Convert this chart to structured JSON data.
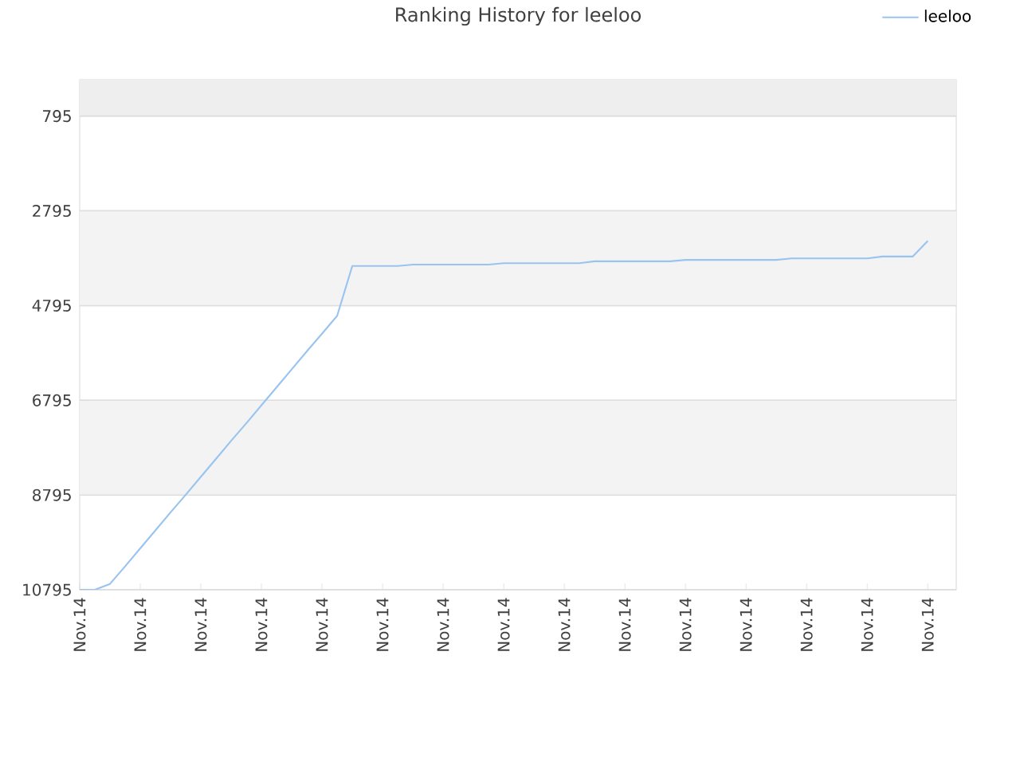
{
  "chart_data": {
    "type": "line",
    "title": "Ranking History for leeloo",
    "categories": [
      "Nov.14",
      null,
      null,
      null,
      "Nov.14",
      null,
      null,
      null,
      "Nov.14",
      null,
      null,
      null,
      "Nov.14",
      null,
      null,
      null,
      "Nov.14",
      null,
      null,
      null,
      "Nov.14",
      null,
      null,
      null,
      "Nov.14",
      null,
      null,
      null,
      "Nov.14",
      null,
      null,
      null,
      "Nov.14",
      null,
      null,
      null,
      "Nov.14",
      null,
      null,
      null,
      "Nov.14",
      null,
      null,
      null,
      "Nov.14",
      null,
      null,
      null,
      "Nov.14",
      null,
      null,
      null,
      "Nov.14",
      null,
      null,
      null,
      "Nov.14"
    ],
    "ylim": [
      10795,
      28
    ],
    "yticks": [
      795,
      2795,
      4795,
      6795,
      8795,
      10795
    ],
    "grid": "y",
    "legend": "top right",
    "marker": "none",
    "line_style": "solid",
    "bands": [
      {
        "axis": "y",
        "from": 28,
        "to": 795,
        "color": "#eeeeee"
      },
      {
        "axis": "y",
        "from": 2795,
        "to": 4795,
        "color": "#f3f3f3"
      },
      {
        "axis": "y",
        "from": 6795,
        "to": 8795,
        "color": "#f3f3f3"
      }
    ],
    "series": [
      {
        "name": "leeloo",
        "color": "#99c4f0",
        "values": [
          10795,
          10795,
          10670,
          10300,
          9920,
          9540,
          9160,
          8790,
          8410,
          8030,
          7650,
          7280,
          6900,
          6520,
          6140,
          5760,
          5390,
          5010,
          3960,
          3960,
          3960,
          3960,
          3930,
          3930,
          3930,
          3930,
          3930,
          3930,
          3900,
          3900,
          3900,
          3900,
          3900,
          3900,
          3860,
          3860,
          3860,
          3860,
          3860,
          3860,
          3830,
          3830,
          3830,
          3830,
          3830,
          3830,
          3830,
          3800,
          3800,
          3800,
          3800,
          3800,
          3800,
          3760,
          3760,
          3760,
          3430
        ]
      }
    ]
  }
}
